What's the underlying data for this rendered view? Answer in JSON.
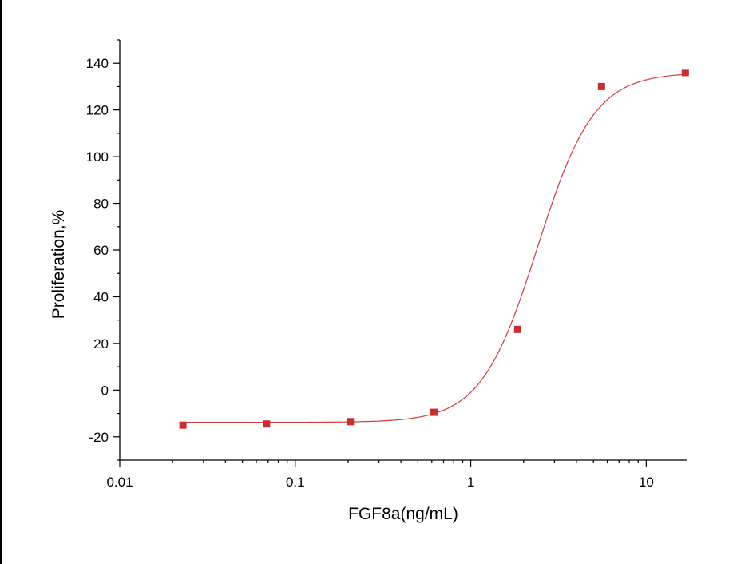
{
  "chart_data": {
    "type": "scatter",
    "xlabel": "FGF8a(ng/mL)",
    "ylabel": "Proliferation,%",
    "x_scale": "log",
    "xlim": [
      0.01,
      17
    ],
    "ylim": [
      -30,
      150
    ],
    "x_ticks": [
      0.01,
      0.1,
      1,
      10
    ],
    "x_tick_labels": [
      "0.01",
      "0.1",
      "1",
      "10"
    ],
    "y_ticks": [
      -20,
      0,
      20,
      40,
      60,
      80,
      100,
      120,
      140
    ],
    "y_tick_labels": [
      "-20",
      "0",
      "20",
      "40",
      "60",
      "80",
      "100",
      "120",
      "140"
    ],
    "grid": false,
    "legend": "none",
    "series": [
      {
        "marker": "square",
        "color": "#c62f32",
        "x": [
          0.0229,
          0.0686,
          0.206,
          0.617,
          1.85,
          5.56,
          16.7
        ],
        "y": [
          -15,
          -14.5,
          -13.5,
          -9.5,
          26,
          130,
          136
        ]
      }
    ],
    "fit_curve": {
      "model": "4PL",
      "color": "#d13b3b",
      "bottom": -13.8,
      "top": 136,
      "ec50": 2.4,
      "hill": 2.7
    }
  }
}
